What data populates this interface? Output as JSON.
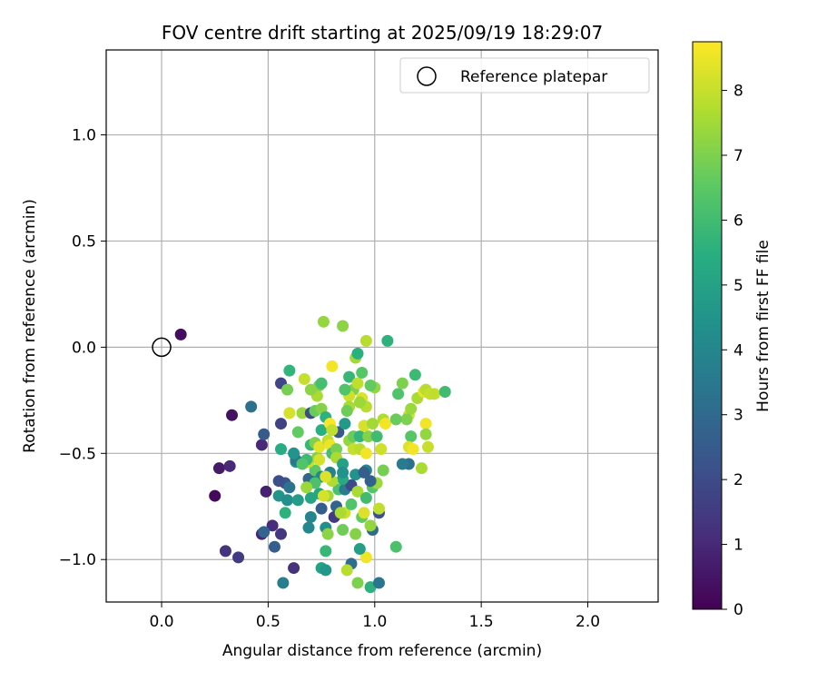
{
  "chart_data": {
    "type": "scatter",
    "title": "FOV centre drift starting at 2025/09/19 18:29:07",
    "xlabel": "Angular distance from reference (arcmin)",
    "ylabel": "Rotation from reference (arcmin)",
    "xlim": [
      -0.26,
      2.33
    ],
    "ylim": [
      -1.2,
      1.4
    ],
    "xticks": [
      0.0,
      0.5,
      1.0,
      1.5,
      2.0
    ],
    "xtick_labels": [
      "0.0",
      "0.5",
      "1.0",
      "1.5",
      "2.0"
    ],
    "yticks": [
      -1.0,
      -0.5,
      0.0,
      0.5,
      1.0
    ],
    "ytick_labels": [
      "−1.0",
      "−0.5",
      "0.0",
      "0.5",
      "1.0"
    ],
    "grid": true,
    "legend": {
      "position": "top-right",
      "entries": [
        "Reference platepar"
      ]
    },
    "reference_point": {
      "x": 0.0,
      "y": 0.0
    },
    "colorbar": {
      "label": "Hours from first FF file",
      "range": [
        0,
        8.75
      ],
      "ticks": [
        0,
        1,
        2,
        3,
        4,
        5,
        6,
        7,
        8
      ],
      "colormap": "viridis"
    },
    "points": [
      [
        0.09,
        0.06,
        0.3
      ],
      [
        0.33,
        -0.32,
        0.4
      ],
      [
        0.25,
        -0.7,
        0.2
      ],
      [
        0.27,
        -0.57,
        0.6
      ],
      [
        0.32,
        -0.56,
        1.0
      ],
      [
        0.3,
        -0.96,
        1.3
      ],
      [
        0.36,
        -0.99,
        1.5
      ],
      [
        0.47,
        -0.46,
        1.0
      ],
      [
        0.49,
        -0.68,
        0.8
      ],
      [
        0.47,
        -0.88,
        0.9
      ],
      [
        0.52,
        -0.84,
        1.1
      ],
      [
        0.56,
        -0.88,
        1.4
      ],
      [
        0.62,
        -1.04,
        1.2
      ],
      [
        0.53,
        -0.94,
        2.6
      ],
      [
        0.48,
        -0.87,
        2.8
      ],
      [
        0.48,
        -0.41,
        2.5
      ],
      [
        0.42,
        -0.28,
        3.2
      ],
      [
        0.56,
        -0.17,
        1.8
      ],
      [
        0.56,
        -0.36,
        1.7
      ],
      [
        0.58,
        -0.64,
        2.3
      ],
      [
        0.55,
        -0.63,
        2.1
      ],
      [
        0.57,
        -1.11,
        3.7
      ],
      [
        0.6,
        -0.66,
        3.3
      ],
      [
        0.55,
        -0.7,
        4.5
      ],
      [
        0.59,
        -0.72,
        4.3
      ],
      [
        0.58,
        -0.78,
        5.6
      ],
      [
        0.64,
        -0.72,
        4.8
      ],
      [
        0.69,
        -0.85,
        4.0
      ],
      [
        0.7,
        -0.8,
        3.9
      ],
      [
        0.69,
        -0.62,
        2.9
      ],
      [
        0.72,
        -0.62,
        3.1
      ],
      [
        0.7,
        -0.71,
        5.1
      ],
      [
        0.74,
        -0.69,
        5.2
      ],
      [
        0.75,
        -0.76,
        2.6
      ],
      [
        0.77,
        -0.85,
        4.3
      ],
      [
        0.77,
        -0.96,
        5.8
      ],
      [
        0.75,
        -1.04,
        5.0
      ],
      [
        0.77,
        -1.05,
        4.6
      ],
      [
        0.78,
        -0.88,
        7.2
      ],
      [
        0.82,
        -0.75,
        2.8
      ],
      [
        0.81,
        -0.8,
        1.5
      ],
      [
        0.85,
        -0.86,
        6.8
      ],
      [
        0.86,
        -0.78,
        8.1
      ],
      [
        0.84,
        -0.78,
        7.6
      ],
      [
        0.83,
        -0.67,
        6.2
      ],
      [
        0.86,
        -0.67,
        3.6
      ],
      [
        0.89,
        -0.74,
        6.3
      ],
      [
        0.89,
        -1.02,
        3.1
      ],
      [
        0.87,
        -1.05,
        7.8
      ],
      [
        0.92,
        -1.11,
        7.0
      ],
      [
        0.96,
        -0.99,
        8.6
      ],
      [
        0.93,
        -0.95,
        4.9
      ],
      [
        0.98,
        -1.13,
        5.6
      ],
      [
        1.02,
        -1.11,
        3.4
      ],
      [
        1.1,
        -0.94,
        6.2
      ],
      [
        0.99,
        -0.86,
        3.0
      ],
      [
        0.98,
        -0.84,
        7.3
      ],
      [
        0.94,
        -0.8,
        6.6
      ],
      [
        0.95,
        -0.78,
        8.3
      ],
      [
        1.02,
        -0.78,
        2.2
      ],
      [
        1.02,
        -0.76,
        7.9
      ],
      [
        0.99,
        -0.66,
        6.4
      ],
      [
        1.01,
        -0.64,
        7.4
      ],
      [
        0.98,
        -0.63,
        2.7
      ],
      [
        1.04,
        -0.58,
        6.9
      ],
      [
        0.96,
        -0.58,
        4.0
      ],
      [
        0.91,
        -0.6,
        4.4
      ],
      [
        0.89,
        -0.65,
        2.0
      ],
      [
        0.85,
        -0.62,
        5.3
      ],
      [
        0.8,
        -0.63,
        7.7
      ],
      [
        0.78,
        -0.7,
        7.5
      ],
      [
        0.76,
        -0.7,
        8.2
      ],
      [
        0.72,
        -0.58,
        6.5
      ],
      [
        0.69,
        -0.54,
        8.0
      ],
      [
        0.73,
        -0.52,
        7.1
      ],
      [
        0.68,
        -0.53,
        5.9
      ],
      [
        0.63,
        -0.54,
        4.2
      ],
      [
        0.63,
        -0.53,
        3.5
      ],
      [
        0.56,
        -0.48,
        5.4
      ],
      [
        0.64,
        -0.4,
        6.6
      ],
      [
        0.7,
        -0.46,
        5.8
      ],
      [
        0.72,
        -0.45,
        7.0
      ],
      [
        0.74,
        -0.47,
        8.4
      ],
      [
        0.75,
        -0.39,
        5.5
      ],
      [
        0.78,
        -0.44,
        7.9
      ],
      [
        0.79,
        -0.46,
        8.5
      ],
      [
        0.8,
        -0.5,
        6.1
      ],
      [
        0.82,
        -0.48,
        6.9
      ],
      [
        0.82,
        -0.52,
        7.6
      ],
      [
        0.85,
        -0.55,
        5.0
      ],
      [
        0.83,
        -0.4,
        2.4
      ],
      [
        0.86,
        -0.36,
        4.7
      ],
      [
        0.88,
        -0.44,
        7.3
      ],
      [
        0.9,
        -0.48,
        8.0
      ],
      [
        0.9,
        -0.42,
        6.7
      ],
      [
        0.93,
        -0.42,
        5.7
      ],
      [
        0.93,
        -0.48,
        7.8
      ],
      [
        0.96,
        -0.5,
        8.6
      ],
      [
        0.97,
        -0.42,
        7.1
      ],
      [
        0.95,
        -0.37,
        8.2
      ],
      [
        0.99,
        -0.36,
        7.5
      ],
      [
        1.01,
        -0.42,
        6.0
      ],
      [
        1.03,
        -0.48,
        8.1
      ],
      [
        1.04,
        -0.34,
        7.7
      ],
      [
        1.05,
        -0.36,
        8.6
      ],
      [
        1.0,
        -0.19,
        7.3
      ],
      [
        0.98,
        -0.18,
        6.6
      ],
      [
        0.94,
        -0.24,
        8.3
      ],
      [
        0.96,
        -0.28,
        7.8
      ],
      [
        0.93,
        -0.26,
        7.4
      ],
      [
        0.9,
        -0.2,
        7.0
      ],
      [
        0.88,
        -0.23,
        8.1
      ],
      [
        0.88,
        -0.28,
        7.6
      ],
      [
        0.87,
        -0.3,
        6.8
      ],
      [
        0.86,
        -0.2,
        6.3
      ],
      [
        0.88,
        -0.14,
        5.8
      ],
      [
        0.92,
        -0.17,
        7.9
      ],
      [
        0.94,
        -0.12,
        6.4
      ],
      [
        0.91,
        -0.05,
        7.5
      ],
      [
        0.92,
        -0.03,
        5.5
      ],
      [
        0.96,
        0.03,
        7.8
      ],
      [
        1.06,
        0.03,
        5.6
      ],
      [
        0.85,
        0.1,
        7.2
      ],
      [
        0.76,
        0.12,
        7.3
      ],
      [
        0.8,
        -0.09,
        8.6
      ],
      [
        0.74,
        -0.18,
        6.8
      ],
      [
        0.73,
        -0.23,
        7.6
      ],
      [
        0.75,
        -0.17,
        6.1
      ],
      [
        0.7,
        -0.2,
        7.2
      ],
      [
        0.67,
        -0.15,
        8.0
      ],
      [
        0.6,
        -0.11,
        5.7
      ],
      [
        0.59,
        -0.2,
        6.9
      ],
      [
        0.6,
        -0.31,
        8.2
      ],
      [
        0.66,
        -0.31,
        7.4
      ],
      [
        0.7,
        -0.31,
        2.0
      ],
      [
        0.72,
        -0.3,
        6.7
      ],
      [
        0.75,
        -0.29,
        7.1
      ],
      [
        0.77,
        -0.33,
        5.6
      ],
      [
        0.79,
        -0.36,
        8.7
      ],
      [
        0.8,
        -0.39,
        7.9
      ],
      [
        1.11,
        -0.22,
        6.3
      ],
      [
        1.13,
        -0.17,
        7.0
      ],
      [
        1.19,
        -0.13,
        5.9
      ],
      [
        1.16,
        -0.32,
        8.1
      ],
      [
        1.17,
        -0.29,
        7.4
      ],
      [
        1.2,
        -0.24,
        7.6
      ],
      [
        1.23,
        -0.21,
        8.4
      ],
      [
        1.24,
        -0.2,
        7.8
      ],
      [
        1.26,
        -0.22,
        8.0
      ],
      [
        1.28,
        -0.22,
        7.9
      ],
      [
        1.33,
        -0.21,
        6.0
      ],
      [
        1.24,
        -0.36,
        8.6
      ],
      [
        1.24,
        -0.41,
        7.3
      ],
      [
        1.25,
        -0.47,
        8.0
      ],
      [
        1.17,
        -0.42,
        6.4
      ],
      [
        1.16,
        -0.47,
        8.3
      ],
      [
        1.18,
        -0.48,
        8.6
      ],
      [
        1.22,
        -0.57,
        7.6
      ],
      [
        1.16,
        -0.55,
        3.2
      ],
      [
        1.13,
        -0.55,
        3.6
      ],
      [
        1.15,
        -0.34,
        7.0
      ],
      [
        1.1,
        -0.34,
        6.7
      ],
      [
        0.95,
        -0.59,
        2.6
      ],
      [
        0.85,
        -0.59,
        4.4
      ],
      [
        0.79,
        -0.59,
        3.8
      ],
      [
        0.75,
        -0.61,
        4.0
      ],
      [
        0.72,
        -0.64,
        6.2
      ],
      [
        0.68,
        -0.66,
        7.4
      ],
      [
        0.66,
        -0.55,
        6.3
      ],
      [
        0.62,
        -0.5,
        4.5
      ],
      [
        0.74,
        -0.53,
        8.2
      ],
      [
        0.77,
        -0.61,
        8.3
      ],
      [
        0.92,
        -0.68,
        7.6
      ],
      [
        0.96,
        -0.71,
        6.0
      ],
      [
        0.91,
        -0.88,
        7.1
      ]
    ]
  }
}
